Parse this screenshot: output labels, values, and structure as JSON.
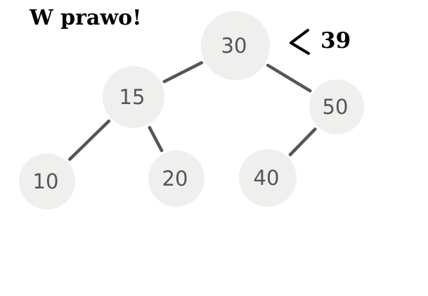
{
  "caption": "W prawo!",
  "query": {
    "comparison": "<",
    "value": "39",
    "beside_node": "30"
  },
  "colors": {
    "node_fill": "#efefee",
    "node_text": "#555555",
    "edge": "#555555",
    "caption": "#000000"
  },
  "tree": {
    "nodes": [
      {
        "id": "n30",
        "label": "30"
      },
      {
        "id": "n15",
        "label": "15"
      },
      {
        "id": "n50",
        "label": "50"
      },
      {
        "id": "n10",
        "label": "10"
      },
      {
        "id": "n20",
        "label": "20"
      },
      {
        "id": "n40",
        "label": "40"
      }
    ],
    "edges": [
      {
        "from": "n30",
        "to": "n15"
      },
      {
        "from": "n30",
        "to": "n50"
      },
      {
        "from": "n15",
        "to": "n10"
      },
      {
        "from": "n15",
        "to": "n20"
      },
      {
        "from": "n50",
        "to": "n40"
      }
    ]
  }
}
